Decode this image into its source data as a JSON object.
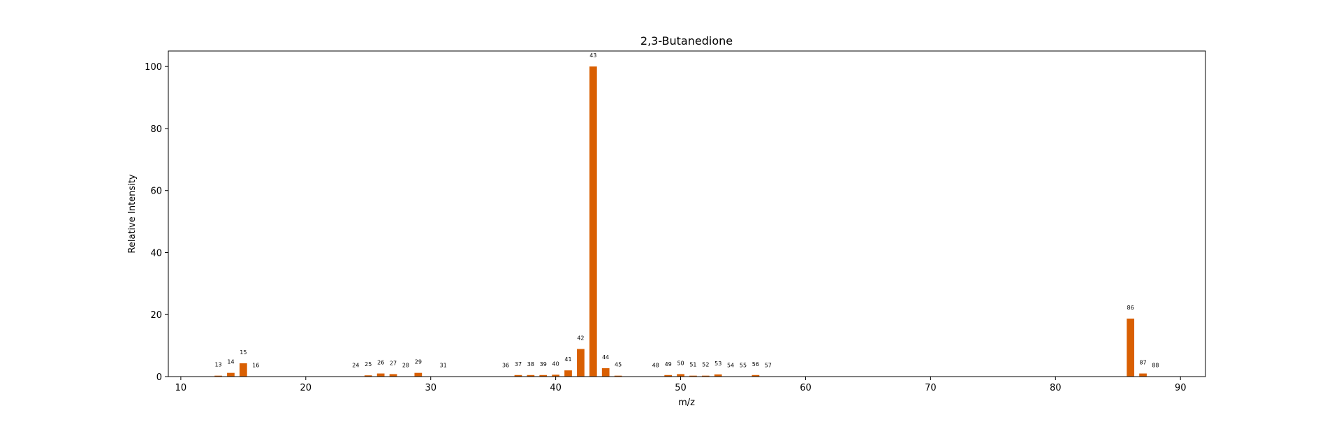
{
  "chart_data": {
    "type": "bar",
    "title": "2,3-Butanedione",
    "xlabel": "m/z",
    "ylabel": "Relative Intensity",
    "xlim": [
      9,
      92
    ],
    "ylim": [
      0,
      105
    ],
    "xticks": [
      10,
      20,
      30,
      40,
      50,
      60,
      70,
      80,
      90
    ],
    "yticks": [
      0,
      20,
      40,
      60,
      80,
      100
    ],
    "grid": false,
    "bar_color": "#d95f02",
    "bar_width": 0.6,
    "x": [
      13,
      14,
      15,
      16,
      24,
      25,
      26,
      27,
      28,
      29,
      31,
      36,
      37,
      38,
      39,
      40,
      41,
      42,
      43,
      44,
      45,
      48,
      49,
      50,
      51,
      52,
      53,
      54,
      55,
      56,
      57,
      86,
      87,
      88
    ],
    "values": [
      0.3,
      1.2,
      4.3,
      0.1,
      0.1,
      0.4,
      1.0,
      0.8,
      0.1,
      1.2,
      0.1,
      0.1,
      0.5,
      0.5,
      0.5,
      0.6,
      2.0,
      8.9,
      100,
      2.7,
      0.3,
      0.1,
      0.5,
      0.8,
      0.3,
      0.3,
      0.7,
      0.1,
      0.1,
      0.5,
      0.1,
      18.7,
      1.0,
      0.1
    ],
    "labels": [
      "13",
      "14",
      "15",
      "16",
      "24",
      "25",
      "26",
      "27",
      "28",
      "29",
      "31",
      "36",
      "37",
      "38",
      "39",
      "40",
      "41",
      "42",
      "43",
      "44",
      "45",
      "48",
      "49",
      "50",
      "51",
      "52",
      "53",
      "54",
      "55",
      "56",
      "57",
      "86",
      "87",
      "88"
    ]
  }
}
